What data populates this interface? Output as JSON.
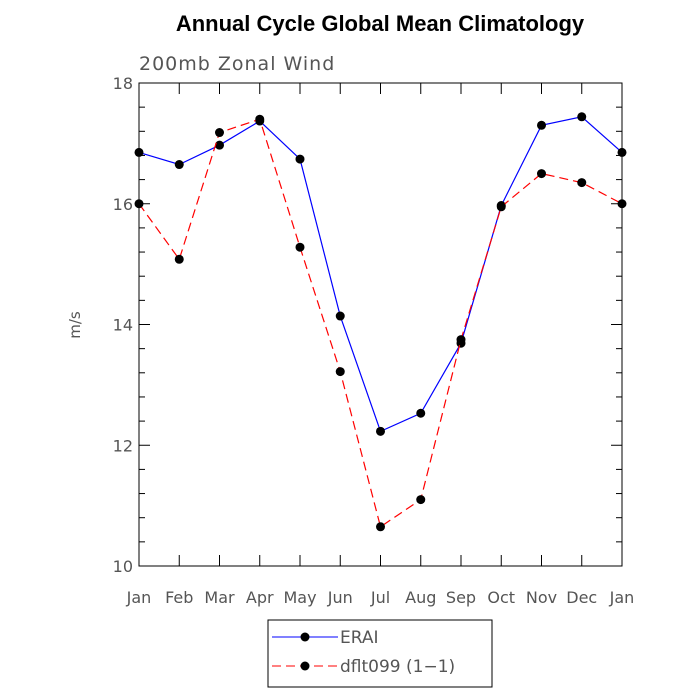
{
  "chart_data": {
    "type": "line",
    "title": "Annual Cycle Global Mean Climatology",
    "subtitle": "200mb Zonal Wind",
    "xlabel": "",
    "ylabel": "m/s",
    "categories": [
      "Jan",
      "Feb",
      "Mar",
      "Apr",
      "May",
      "Jun",
      "Jul",
      "Aug",
      "Sep",
      "Oct",
      "Nov",
      "Dec",
      "Jan"
    ],
    "ylim": [
      10,
      18
    ],
    "yticks": [
      10,
      12,
      14,
      16,
      18
    ],
    "grid": false,
    "legend_position": "bottom-center",
    "series": [
      {
        "name": "ERAI",
        "color": "#0000ff",
        "dash": "solid",
        "marker": "filled-circle",
        "values": [
          16.85,
          16.65,
          16.97,
          17.37,
          16.74,
          14.14,
          12.23,
          12.53,
          13.69,
          15.97,
          17.3,
          17.44,
          16.85
        ]
      },
      {
        "name": "dflt099 (1−1)",
        "color": "#ff0000",
        "dash": "dashed",
        "marker": "filled-circle",
        "values": [
          16.0,
          15.08,
          17.18,
          17.4,
          15.28,
          13.22,
          10.65,
          11.1,
          13.75,
          15.95,
          16.5,
          16.35,
          16.0
        ]
      }
    ]
  }
}
